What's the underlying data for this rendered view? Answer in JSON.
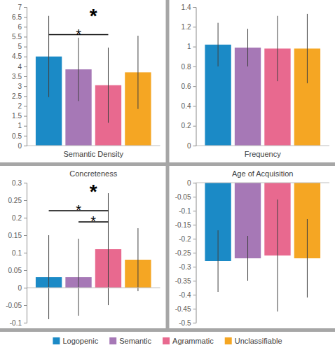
{
  "chart_data": [
    {
      "type": "bar",
      "categories": [
        "Semantic Density"
      ],
      "series": [
        {
          "name": "Logopenic",
          "color": "#1b8ac6",
          "values": [
            4.5
          ],
          "errors": [
            2.05
          ]
        },
        {
          "name": "Semantic",
          "color": "#a678b6",
          "values": [
            3.85
          ],
          "errors": [
            1.6
          ]
        },
        {
          "name": "Agrammatic",
          "color": "#e8698f",
          "values": [
            3.05
          ],
          "errors": [
            1.9
          ]
        },
        {
          "name": "Unclassifiable",
          "color": "#f5a623",
          "values": [
            3.7
          ],
          "errors": [
            1.85
          ]
        }
      ],
      "ylim": [
        0,
        7
      ],
      "yticks": [
        0,
        0.5,
        1,
        1.5,
        2,
        2.5,
        3,
        3.5,
        4,
        4.5,
        5,
        5.5,
        6,
        6.5,
        7
      ],
      "annotations": [
        "*"
      ],
      "comparisons": [
        {
          "groups": [
            "Logopenic",
            "Agrammatic"
          ],
          "label": "*"
        }
      ],
      "legend": "bottom"
    },
    {
      "type": "bar",
      "categories": [
        "Frequency"
      ],
      "series": [
        {
          "name": "Logopenic",
          "color": "#1b8ac6",
          "values": [
            1.02
          ],
          "errors": [
            0.22
          ]
        },
        {
          "name": "Semantic",
          "color": "#a678b6",
          "values": [
            0.99
          ],
          "errors": [
            0.19
          ]
        },
        {
          "name": "Agrammatic",
          "color": "#e8698f",
          "values": [
            0.98
          ],
          "errors": [
            0.33
          ]
        },
        {
          "name": "Unclassifiable",
          "color": "#f5a623",
          "values": [
            0.98
          ],
          "errors": [
            0.35
          ]
        }
      ],
      "ylim": [
        0,
        1.4
      ],
      "yticks": [
        0,
        0.2,
        0.4,
        0.6,
        0.8,
        1,
        1.2,
        1.4
      ],
      "legend": "bottom"
    },
    {
      "type": "bar",
      "categories": [
        "Concreteness"
      ],
      "series": [
        {
          "name": "Logopenic",
          "color": "#1b8ac6",
          "values": [
            0.03
          ],
          "errors": [
            0.12
          ]
        },
        {
          "name": "Semantic",
          "color": "#a678b6",
          "values": [
            0.03
          ],
          "errors": [
            0.11
          ]
        },
        {
          "name": "Agrammatic",
          "color": "#e8698f",
          "values": [
            0.11
          ],
          "errors": [
            0.16
          ]
        },
        {
          "name": "Unclassifiable",
          "color": "#f5a623",
          "values": [
            0.08
          ],
          "errors": [
            0.09
          ]
        }
      ],
      "ylim": [
        -0.1,
        0.3
      ],
      "yticks": [
        -0.1,
        -0.05,
        0,
        0.05,
        0.1,
        0.15,
        0.2,
        0.25,
        0.3
      ],
      "annotations": [
        "*"
      ],
      "comparisons": [
        {
          "groups": [
            "Logopenic",
            "Agrammatic"
          ],
          "label": "*"
        },
        {
          "groups": [
            "Semantic",
            "Agrammatic"
          ],
          "label": "*"
        }
      ],
      "legend": "bottom"
    },
    {
      "type": "bar",
      "categories": [
        "Age of Acquisition"
      ],
      "series": [
        {
          "name": "Logopenic",
          "color": "#1b8ac6",
          "values": [
            -0.28
          ],
          "errors": [
            0.11
          ]
        },
        {
          "name": "Semantic",
          "color": "#a678b6",
          "values": [
            -0.27
          ],
          "errors": [
            0.08
          ]
        },
        {
          "name": "Agrammatic",
          "color": "#e8698f",
          "values": [
            -0.26
          ],
          "errors": [
            0.2
          ]
        },
        {
          "name": "Unclassifiable",
          "color": "#f5a623",
          "values": [
            -0.27
          ],
          "errors": [
            0.14
          ]
        }
      ],
      "ylim": [
        -0.5,
        0
      ],
      "yticks": [
        -0.5,
        -0.45,
        -0.4,
        -0.35,
        -0.3,
        -0.25,
        -0.2,
        -0.15,
        -0.1,
        -0.05,
        0
      ],
      "legend": "bottom"
    }
  ]
}
